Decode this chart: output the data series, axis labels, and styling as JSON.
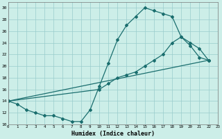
{
  "bg_color": "#cceee8",
  "grid_color": "#99cccc",
  "line_color": "#1a6e6e",
  "line1_x": [
    0,
    1,
    2,
    3,
    4,
    5,
    6,
    7,
    8,
    9,
    10,
    11,
    12,
    13,
    14,
    15,
    16,
    17,
    18,
    19,
    20,
    21,
    22
  ],
  "line1_y": [
    14,
    13.5,
    12.5,
    12,
    11.5,
    11.5,
    11,
    10.5,
    10.5,
    12.5,
    16.5,
    20.5,
    24.5,
    27,
    28.5,
    30,
    29.5,
    29,
    28.5,
    25,
    23.5,
    21.5,
    21.0
  ],
  "line2_x": [
    0,
    22
  ],
  "line2_y": [
    14,
    21.0
  ],
  "line3_x": [
    0,
    10,
    11,
    12,
    13,
    14,
    15,
    16,
    17,
    18,
    19,
    20,
    21,
    22
  ],
  "line3_y": [
    14,
    16,
    17,
    18,
    18.5,
    19,
    20,
    21,
    22,
    24,
    25,
    24,
    23,
    21.0
  ],
  "xlabel": "Humidex (Indice chaleur)",
  "xlim": [
    0,
    23
  ],
  "ylim": [
    10,
    31
  ],
  "yticks": [
    10,
    12,
    14,
    16,
    18,
    20,
    22,
    24,
    26,
    28,
    30
  ],
  "xticks": [
    0,
    1,
    2,
    3,
    4,
    5,
    6,
    7,
    8,
    9,
    10,
    11,
    12,
    13,
    14,
    15,
    16,
    17,
    18,
    19,
    20,
    21,
    22,
    23
  ]
}
